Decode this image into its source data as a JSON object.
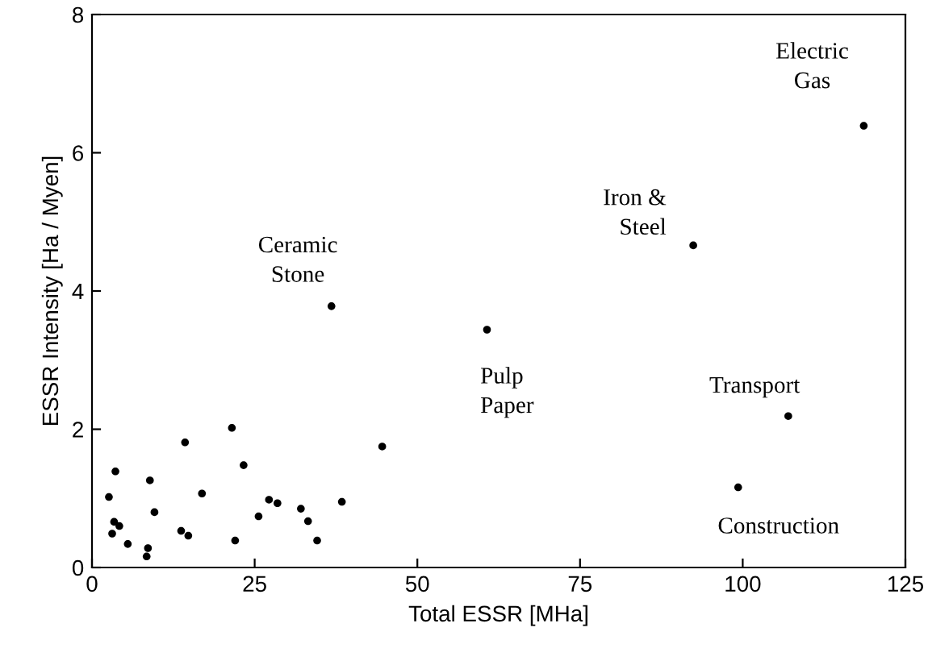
{
  "chart_data": {
    "type": "scatter",
    "xlabel": "Total ESSR [MHa]",
    "ylabel": "ESSR Intensity [Ha / Myen]",
    "xlim": [
      0,
      125
    ],
    "ylim": [
      0,
      8
    ],
    "xticks": [
      0,
      25,
      50,
      75,
      100,
      125
    ],
    "yticks": [
      0,
      2,
      4,
      6,
      8
    ],
    "grid": false,
    "marker": "circle",
    "series": [
      {
        "color": "#000000",
        "x": [
          2.6,
          3.6,
          3.4,
          4.2,
          3.1,
          5.5,
          8.6,
          8.4,
          8.9,
          9.6,
          14.3,
          13.7,
          14.8,
          16.9,
          21.5,
          23.3,
          22.0,
          25.6,
          27.2,
          28.5,
          32.1,
          33.2,
          34.6,
          38.4,
          44.6,
          36.8,
          60.7,
          92.4,
          107.0,
          99.3,
          118.6
        ],
        "values": [
          1.02,
          1.39,
          0.66,
          0.6,
          0.49,
          0.34,
          0.28,
          0.16,
          1.26,
          0.8,
          1.81,
          0.53,
          0.46,
          1.07,
          2.02,
          1.48,
          0.39,
          0.74,
          0.98,
          0.93,
          0.85,
          0.67,
          0.39,
          0.95,
          1.75,
          3.78,
          3.44,
          4.66,
          2.19,
          1.16,
          6.39
        ]
      }
    ],
    "annotations": [
      {
        "text": "Electric\nGas",
        "x": 118.6,
        "y": 6.39
      },
      {
        "text": "Iron &\nSteel",
        "x": 92.4,
        "y": 4.66
      },
      {
        "text": "Ceramic\nStone",
        "x": 36.8,
        "y": 3.78
      },
      {
        "text": "Pulp\nPaper",
        "x": 60.7,
        "y": 3.44
      },
      {
        "text": "Transport",
        "x": 107.0,
        "y": 2.19
      },
      {
        "text": "Construction",
        "x": 99.3,
        "y": 1.16
      }
    ]
  }
}
